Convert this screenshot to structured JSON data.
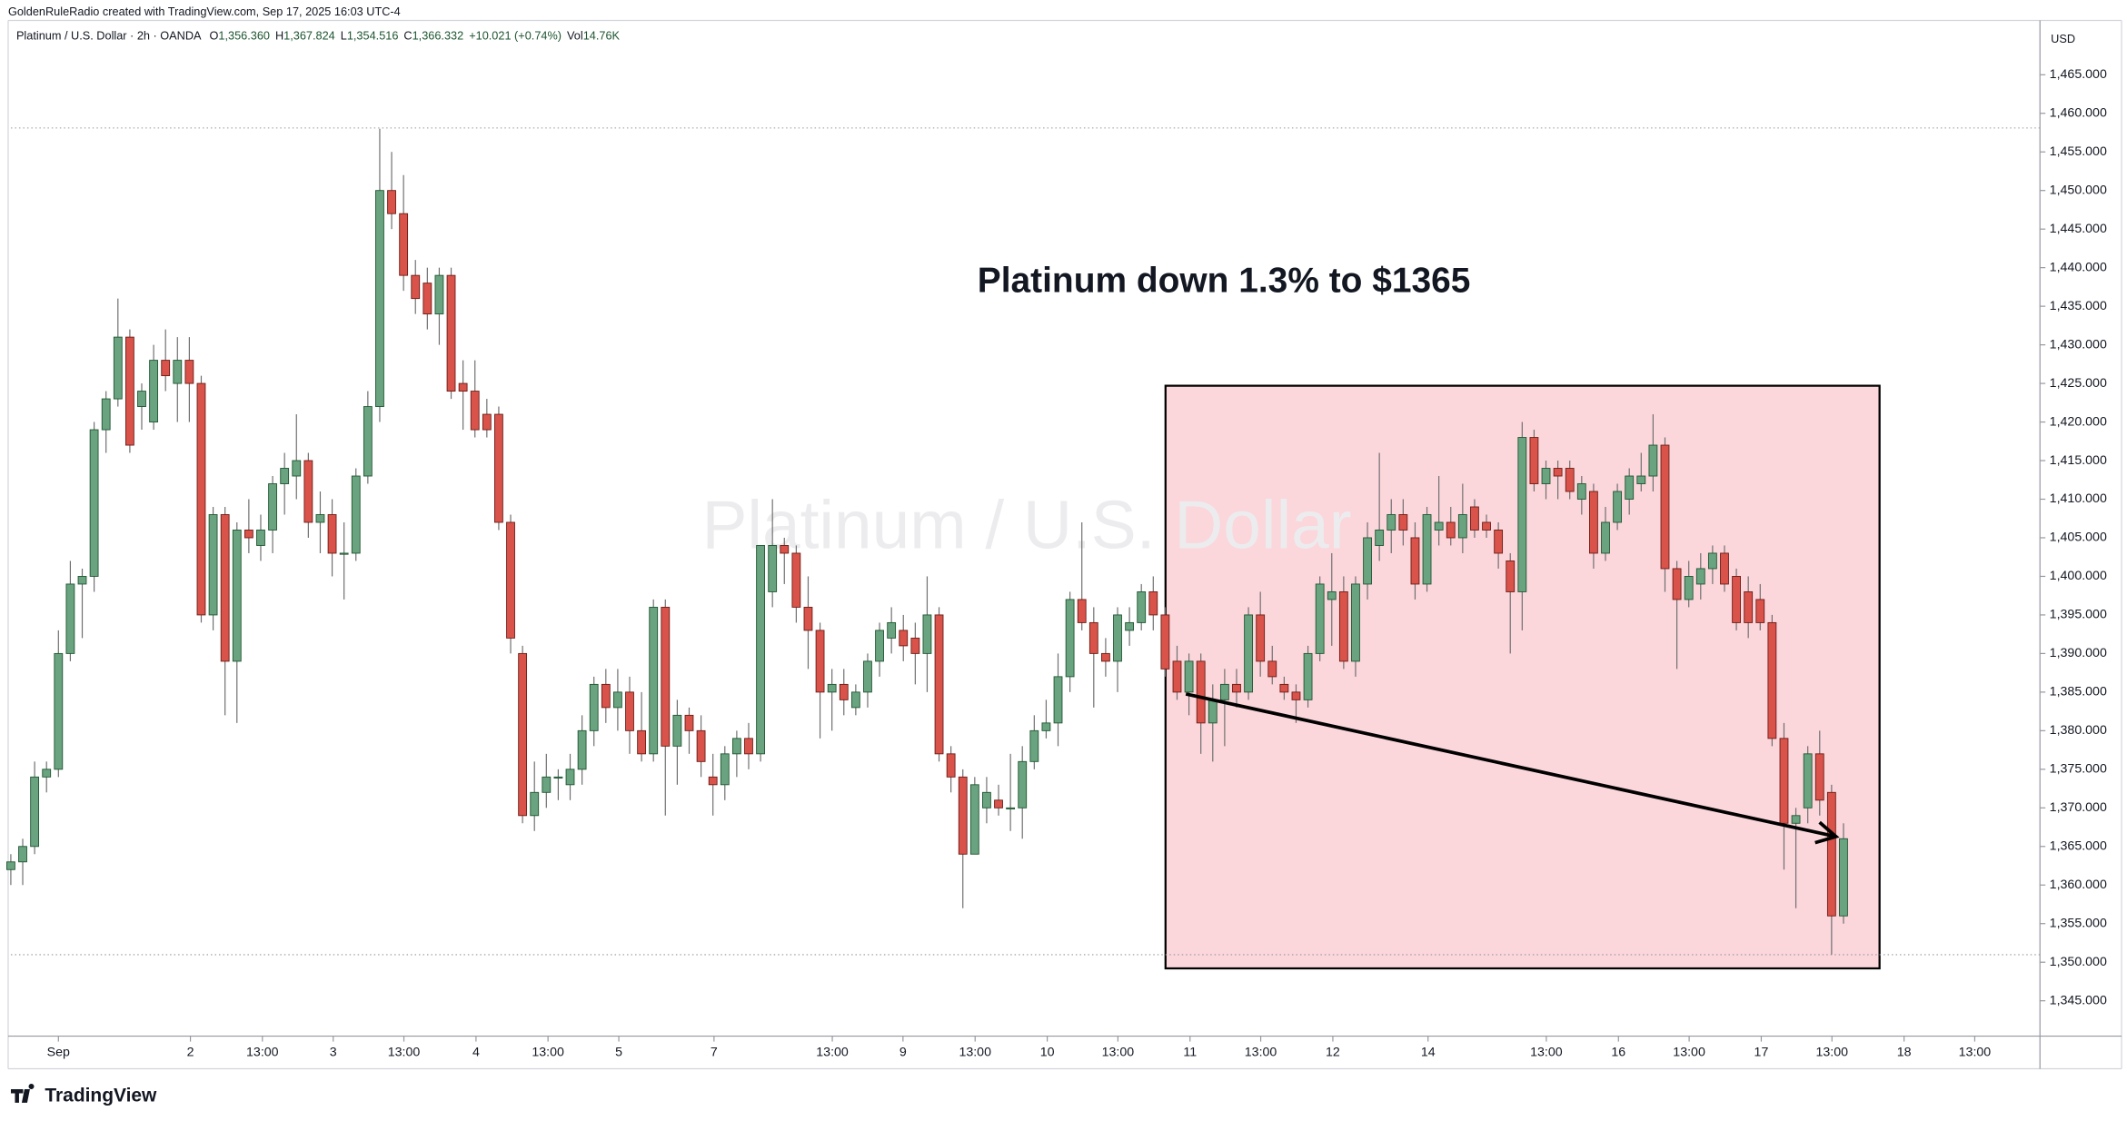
{
  "header": {
    "credit": "GoldenRuleRadio created with TradingView.com, Sep 17, 2025 16:03 UTC-4"
  },
  "legend": {
    "symbol": "Platinum / U.S. Dollar · 2h · OANDA",
    "ohlc": [
      {
        "label": "O",
        "value": "1,356.360"
      },
      {
        "label": "H",
        "value": "1,367.824"
      },
      {
        "label": "L",
        "value": "1,354.516"
      },
      {
        "label": "C",
        "value": "1,366.332"
      }
    ],
    "change": "+10.021 (+0.74%)",
    "volume": {
      "label": "Vol",
      "value": "14.76K"
    }
  },
  "logo": "TradingView",
  "chart_data": {
    "type": "candlestick",
    "watermark": "Platinum / U.S. Dollar",
    "currency": "USD",
    "annotation": "Platinum down 1.3% to $1365",
    "up_color": "#6aa37f",
    "up_border": "#1e5631",
    "down_color": "#d9534a",
    "down_border": "#6b1c16",
    "xlim": [
      -0.91,
      170.51
    ],
    "ylim": [
      1340.42,
      1472.04
    ],
    "grid": false,
    "xticks": [
      {
        "value": 4.0,
        "label": "Sep"
      },
      {
        "value": 15.09,
        "label": "2"
      },
      {
        "value": 21.14,
        "label": "13:00"
      },
      {
        "value": 27.09,
        "label": "3"
      },
      {
        "value": 33.03,
        "label": "13:00"
      },
      {
        "value": 39.09,
        "label": "4"
      },
      {
        "value": 45.14,
        "label": "13:00"
      },
      {
        "value": 51.09,
        "label": "5"
      },
      {
        "value": 59.09,
        "label": "7"
      },
      {
        "value": 69.03,
        "label": "13:00"
      },
      {
        "value": 74.97,
        "label": "9"
      },
      {
        "value": 81.03,
        "label": "13:00"
      },
      {
        "value": 87.09,
        "label": "10"
      },
      {
        "value": 93.03,
        "label": "13:00"
      },
      {
        "value": 99.09,
        "label": "11"
      },
      {
        "value": 105.03,
        "label": "13:00"
      },
      {
        "value": 111.09,
        "label": "12"
      },
      {
        "value": 119.09,
        "label": "14"
      },
      {
        "value": 129.03,
        "label": "13:00"
      },
      {
        "value": 135.09,
        "label": "16"
      },
      {
        "value": 141.03,
        "label": "13:00"
      },
      {
        "value": 147.09,
        "label": "17"
      },
      {
        "value": 153.03,
        "label": "13:00"
      },
      {
        "value": 159.09,
        "label": "18"
      },
      {
        "value": 165.03,
        "label": "13:00"
      }
    ],
    "yticks": [
      {
        "value": 1465,
        "label": "1,465.000"
      },
      {
        "value": 1460,
        "label": "1,460.000"
      },
      {
        "value": 1455,
        "label": "1,455.000"
      },
      {
        "value": 1450,
        "label": "1,450.000"
      },
      {
        "value": 1445,
        "label": "1,445.000"
      },
      {
        "value": 1440,
        "label": "1,440.000"
      },
      {
        "value": 1435,
        "label": "1,435.000"
      },
      {
        "value": 1430,
        "label": "1,430.000"
      },
      {
        "value": 1425,
        "label": "1,425.000"
      },
      {
        "value": 1420,
        "label": "1,420.000"
      },
      {
        "value": 1415,
        "label": "1,415.000"
      },
      {
        "value": 1410,
        "label": "1,410.000"
      },
      {
        "value": 1405,
        "label": "1,405.000"
      },
      {
        "value": 1400,
        "label": "1,400.000"
      },
      {
        "value": 1395,
        "label": "1,395.000"
      },
      {
        "value": 1390,
        "label": "1,390.000"
      },
      {
        "value": 1385,
        "label": "1,385.000"
      },
      {
        "value": 1380,
        "label": "1,380.000"
      },
      {
        "value": 1375,
        "label": "1,375.000"
      },
      {
        "value": 1370,
        "label": "1,370.000"
      },
      {
        "value": 1365,
        "label": "1,365.000"
      },
      {
        "value": 1360,
        "label": "1,360.000"
      },
      {
        "value": 1355,
        "label": "1,355.000"
      },
      {
        "value": 1350,
        "label": "1,350.000"
      },
      {
        "value": 1345,
        "label": "1,345.000"
      }
    ],
    "hlines": [
      1458.1,
      1350.97
    ],
    "box": {
      "x": [
        97.03,
        157.03
      ],
      "y": [
        1349.2,
        1424.7
      ]
    },
    "arrow": {
      "x": [
        98.74,
        153.37
      ],
      "y": [
        1384.76,
        1366.28
      ]
    },
    "candles": [
      [
        1362,
        1364,
        1360,
        1363
      ],
      [
        1363,
        1366,
        1360,
        1365
      ],
      [
        1365,
        1376,
        1364,
        1374
      ],
      [
        1374,
        1376,
        1372,
        1375
      ],
      [
        1375,
        1393,
        1374,
        1390
      ],
      [
        1390,
        1402,
        1389,
        1399
      ],
      [
        1399,
        1401,
        1392,
        1400
      ],
      [
        1400,
        1420,
        1398,
        1419
      ],
      [
        1419,
        1424,
        1416,
        1423
      ],
      [
        1423,
        1436,
        1422,
        1431
      ],
      [
        1431,
        1432,
        1416,
        1417
      ],
      [
        1422,
        1425,
        1419,
        1424
      ],
      [
        1420,
        1430,
        1419,
        1428
      ],
      [
        1428,
        1432,
        1424,
        1426
      ],
      [
        1425,
        1431,
        1420,
        1428
      ],
      [
        1428,
        1431,
        1420,
        1425
      ],
      [
        1425,
        1426,
        1394,
        1395
      ],
      [
        1395,
        1409,
        1393,
        1408
      ],
      [
        1408,
        1409,
        1382,
        1389
      ],
      [
        1389,
        1407,
        1381,
        1406
      ],
      [
        1406,
        1410,
        1403,
        1405
      ],
      [
        1404,
        1408,
        1402,
        1406
      ],
      [
        1406,
        1413,
        1403,
        1412
      ],
      [
        1412,
        1416,
        1408,
        1414
      ],
      [
        1413,
        1421,
        1410,
        1415
      ],
      [
        1415,
        1416,
        1405,
        1407
      ],
      [
        1407,
        1411,
        1403,
        1408
      ],
      [
        1408,
        1410,
        1400,
        1403
      ],
      [
        1403,
        1407,
        1397,
        1403
      ],
      [
        1403,
        1414,
        1402,
        1413
      ],
      [
        1413,
        1424,
        1412,
        1422
      ],
      [
        1422,
        1458,
        1420,
        1450
      ],
      [
        1450,
        1455,
        1445,
        1447
      ],
      [
        1447,
        1452,
        1437,
        1439
      ],
      [
        1439,
        1441,
        1434,
        1436
      ],
      [
        1438,
        1440,
        1432,
        1434
      ],
      [
        1434,
        1440,
        1430,
        1439
      ],
      [
        1439,
        1440,
        1423,
        1424
      ],
      [
        1425,
        1428,
        1419,
        1424
      ],
      [
        1424,
        1428,
        1418,
        1419
      ],
      [
        1421,
        1423,
        1418,
        1419
      ],
      [
        1421,
        1422,
        1406,
        1407
      ],
      [
        1407,
        1408,
        1390,
        1392
      ],
      [
        1390,
        1391,
        1368,
        1369
      ],
      [
        1369,
        1376,
        1367,
        1372
      ],
      [
        1372,
        1377,
        1370,
        1374
      ],
      [
        1374,
        1375,
        1371,
        1374
      ],
      [
        1373,
        1377,
        1371,
        1375
      ],
      [
        1375,
        1382,
        1373,
        1380
      ],
      [
        1380,
        1387,
        1378,
        1386
      ],
      [
        1386,
        1388,
        1381,
        1383
      ],
      [
        1383,
        1388,
        1380,
        1385
      ],
      [
        1385,
        1387,
        1377,
        1380
      ],
      [
        1380,
        1385,
        1376,
        1377
      ],
      [
        1377,
        1397,
        1376,
        1396
      ],
      [
        1396,
        1397,
        1369,
        1378
      ],
      [
        1378,
        1384,
        1373,
        1382
      ],
      [
        1382,
        1383,
        1377,
        1380
      ],
      [
        1380,
        1382,
        1374,
        1376
      ],
      [
        1374,
        1377,
        1369,
        1373
      ],
      [
        1373,
        1378,
        1371,
        1377
      ],
      [
        1377,
        1380,
        1374,
        1379
      ],
      [
        1379,
        1381,
        1375,
        1377
      ],
      [
        1377,
        1404,
        1376,
        1404
      ],
      [
        1398,
        1410,
        1396,
        1404
      ],
      [
        1404,
        1405,
        1399,
        1403
      ],
      [
        1403,
        1404,
        1394,
        1396
      ],
      [
        1396,
        1400,
        1388,
        1393
      ],
      [
        1393,
        1394,
        1379,
        1385
      ],
      [
        1385,
        1388,
        1380,
        1386
      ],
      [
        1386,
        1388,
        1382,
        1384
      ],
      [
        1383,
        1386,
        1382,
        1385
      ],
      [
        1385,
        1390,
        1383,
        1389
      ],
      [
        1389,
        1394,
        1387,
        1393
      ],
      [
        1392,
        1396,
        1390,
        1394
      ],
      [
        1393,
        1395,
        1389,
        1391
      ],
      [
        1392,
        1394,
        1386,
        1390
      ],
      [
        1390,
        1400,
        1385,
        1395
      ],
      [
        1395,
        1396,
        1376,
        1377
      ],
      [
        1377,
        1378,
        1372,
        1374
      ],
      [
        1374,
        1375,
        1357,
        1364
      ],
      [
        1364,
        1374,
        1364,
        1373
      ],
      [
        1370,
        1374,
        1368,
        1372
      ],
      [
        1371,
        1373,
        1369,
        1370
      ],
      [
        1370,
        1377,
        1367,
        1370
      ],
      [
        1370,
        1378,
        1366,
        1376
      ],
      [
        1376,
        1382,
        1375,
        1380
      ],
      [
        1380,
        1384,
        1379,
        1381
      ],
      [
        1381,
        1390,
        1378,
        1387
      ],
      [
        1387,
        1398,
        1385,
        1397
      ],
      [
        1397,
        1407,
        1393,
        1394
      ],
      [
        1394,
        1396,
        1383,
        1390
      ],
      [
        1390,
        1392,
        1387,
        1389
      ],
      [
        1389,
        1396,
        1385,
        1395
      ],
      [
        1393,
        1396,
        1391,
        1394
      ],
      [
        1394,
        1399,
        1393,
        1398
      ],
      [
        1398,
        1400,
        1393,
        1395
      ],
      [
        1395,
        1396,
        1387,
        1388
      ],
      [
        1389,
        1391,
        1384,
        1385
      ],
      [
        1385,
        1390,
        1382,
        1389
      ],
      [
        1389,
        1390,
        1377,
        1381
      ],
      [
        1381,
        1386,
        1376,
        1384
      ],
      [
        1384,
        1388,
        1378,
        1386
      ],
      [
        1386,
        1388,
        1383,
        1385
      ],
      [
        1385,
        1396,
        1384,
        1395
      ],
      [
        1395,
        1398,
        1387,
        1389
      ],
      [
        1389,
        1391,
        1386,
        1387
      ],
      [
        1386,
        1387,
        1384,
        1385
      ],
      [
        1385,
        1386,
        1381,
        1384
      ],
      [
        1384,
        1391,
        1383,
        1390
      ],
      [
        1390,
        1400,
        1389,
        1399
      ],
      [
        1397,
        1403,
        1391,
        1398
      ],
      [
        1398,
        1400,
        1388,
        1389
      ],
      [
        1389,
        1400,
        1387,
        1399
      ],
      [
        1399,
        1407,
        1397,
        1405
      ],
      [
        1404,
        1416,
        1402,
        1406
      ],
      [
        1406,
        1410,
        1403,
        1408
      ],
      [
        1408,
        1410,
        1404,
        1406
      ],
      [
        1405,
        1407,
        1397,
        1399
      ],
      [
        1399,
        1409,
        1398,
        1408
      ],
      [
        1406,
        1413,
        1404,
        1407
      ],
      [
        1407,
        1409,
        1404,
        1405
      ],
      [
        1405,
        1412,
        1403,
        1408
      ],
      [
        1409,
        1410,
        1405,
        1406
      ],
      [
        1407,
        1408,
        1405,
        1406
      ],
      [
        1406,
        1407,
        1401,
        1403
      ],
      [
        1402,
        1403,
        1390,
        1398
      ],
      [
        1398,
        1420,
        1393,
        1418
      ],
      [
        1418,
        1419,
        1411,
        1412
      ],
      [
        1412,
        1415,
        1410,
        1414
      ],
      [
        1414,
        1415,
        1410,
        1413
      ],
      [
        1414,
        1415,
        1410,
        1411
      ],
      [
        1410,
        1413,
        1408,
        1412
      ],
      [
        1411,
        1412,
        1401,
        1403
      ],
      [
        1403,
        1409,
        1402,
        1407
      ],
      [
        1407,
        1412,
        1406,
        1411
      ],
      [
        1410,
        1414,
        1408,
        1413
      ],
      [
        1412,
        1416,
        1411,
        1413
      ],
      [
        1413,
        1421,
        1411,
        1417
      ],
      [
        1417,
        1418,
        1398,
        1401
      ],
      [
        1401,
        1402,
        1388,
        1397
      ],
      [
        1397,
        1402,
        1396,
        1400
      ],
      [
        1399,
        1403,
        1397,
        1401
      ],
      [
        1401,
        1404,
        1399,
        1403
      ],
      [
        1403,
        1404,
        1398,
        1399
      ],
      [
        1400,
        1401,
        1393,
        1394
      ],
      [
        1398,
        1400,
        1392,
        1394
      ],
      [
        1397,
        1399,
        1393,
        1394
      ],
      [
        1394,
        1395,
        1378,
        1379
      ],
      [
        1379,
        1381,
        1362,
        1368
      ],
      [
        1368,
        1370,
        1357,
        1369
      ],
      [
        1370,
        1378,
        1368,
        1377
      ],
      [
        1377,
        1380,
        1369,
        1371
      ],
      [
        1372,
        1373,
        1351,
        1356
      ],
      [
        1356,
        1368,
        1355,
        1366
      ]
    ]
  }
}
